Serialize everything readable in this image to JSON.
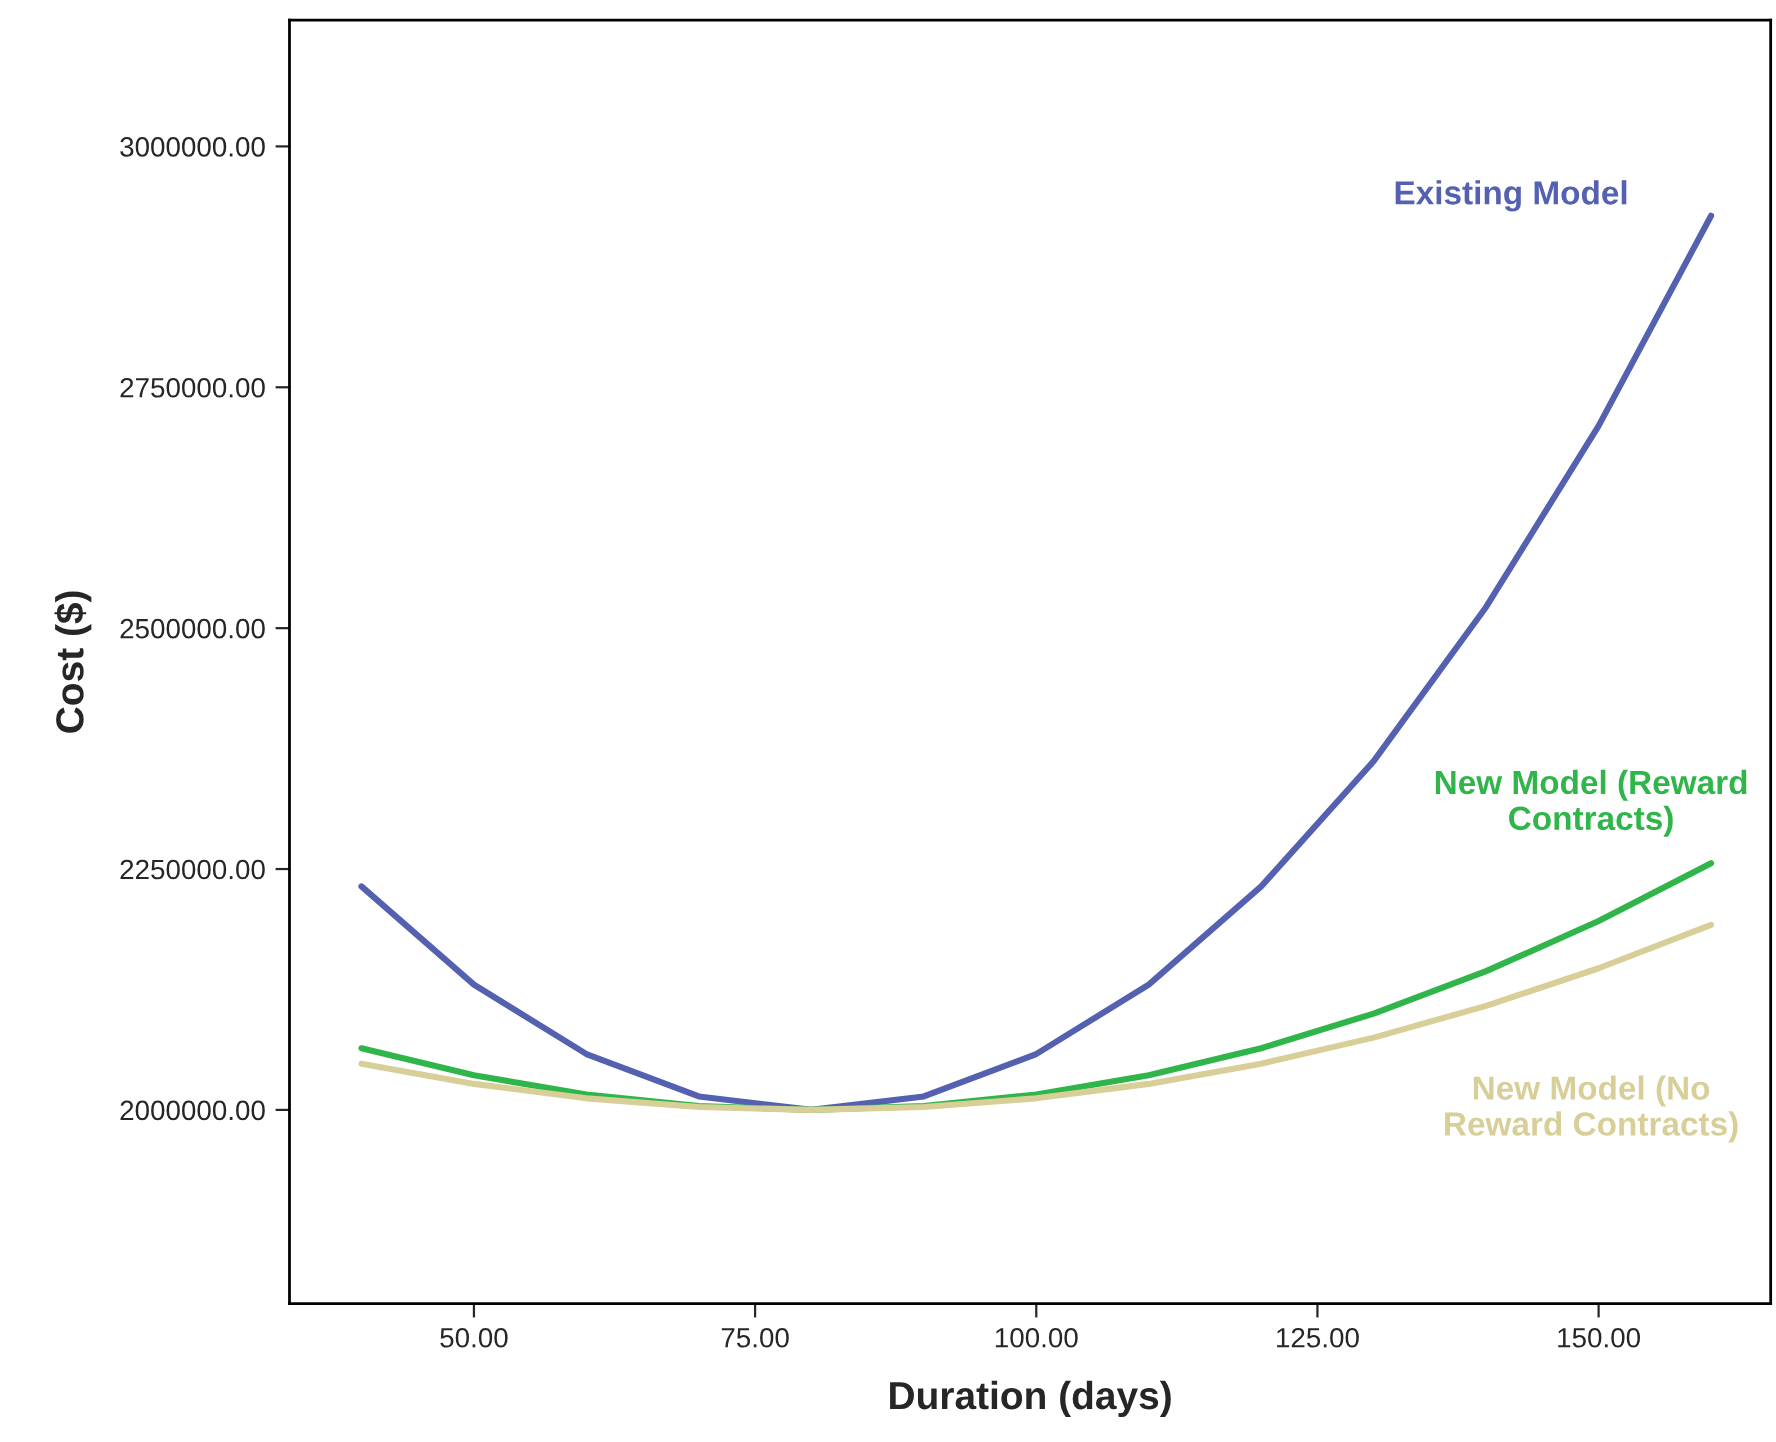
{
  "chart_data": {
    "type": "line",
    "xlabel": "Duration (days)",
    "ylabel": "Cost ($)",
    "x": [
      40,
      50,
      60,
      70,
      80,
      90,
      100,
      110,
      120,
      130,
      140,
      150,
      160
    ],
    "series": [
      {
        "name": "Existing Model",
        "color": "#5361b0",
        "values": [
          2232000,
          2130000,
          2058000,
          2014000,
          2000000,
          2014000,
          2058000,
          2130000,
          2232000,
          2362000,
          2522000,
          2710000,
          2928000
        ]
      },
      {
        "name": "New Model (Reward\nContracts)",
        "color": "#2fb54a",
        "values": [
          2064000,
          2036000,
          2016000,
          2004000,
          2000000,
          2004000,
          2016000,
          2036000,
          2064000,
          2100000,
          2144000,
          2196000,
          2256000
        ]
      },
      {
        "name": "New Model (No\nReward Contracts)",
        "color": "#d8cf98",
        "values": [
          2048000,
          2027000,
          2012000,
          2003000,
          2000000,
          2003000,
          2012000,
          2027000,
          2048000,
          2075000,
          2108000,
          2147000,
          2192000
        ]
      }
    ],
    "xlim": [
      33.6,
      165.3
    ],
    "ylim": [
      1799000,
      3131000
    ],
    "xticks": [
      {
        "value": 50,
        "label": "50.00"
      },
      {
        "value": 75,
        "label": "75.00"
      },
      {
        "value": 100,
        "label": "100.00"
      },
      {
        "value": 125,
        "label": "125.00"
      },
      {
        "value": 150,
        "label": "150.00"
      }
    ],
    "yticks": [
      {
        "value": 2000000,
        "label": "2000000.00"
      },
      {
        "value": 2250000,
        "label": "2250000.00"
      },
      {
        "value": 2500000,
        "label": "2500000.00"
      },
      {
        "value": 2750000,
        "label": "2750000.00"
      },
      {
        "value": 3000000,
        "label": "3000000.00"
      }
    ],
    "grid": false,
    "legend": false,
    "line_style": "solid",
    "marker": "none"
  }
}
